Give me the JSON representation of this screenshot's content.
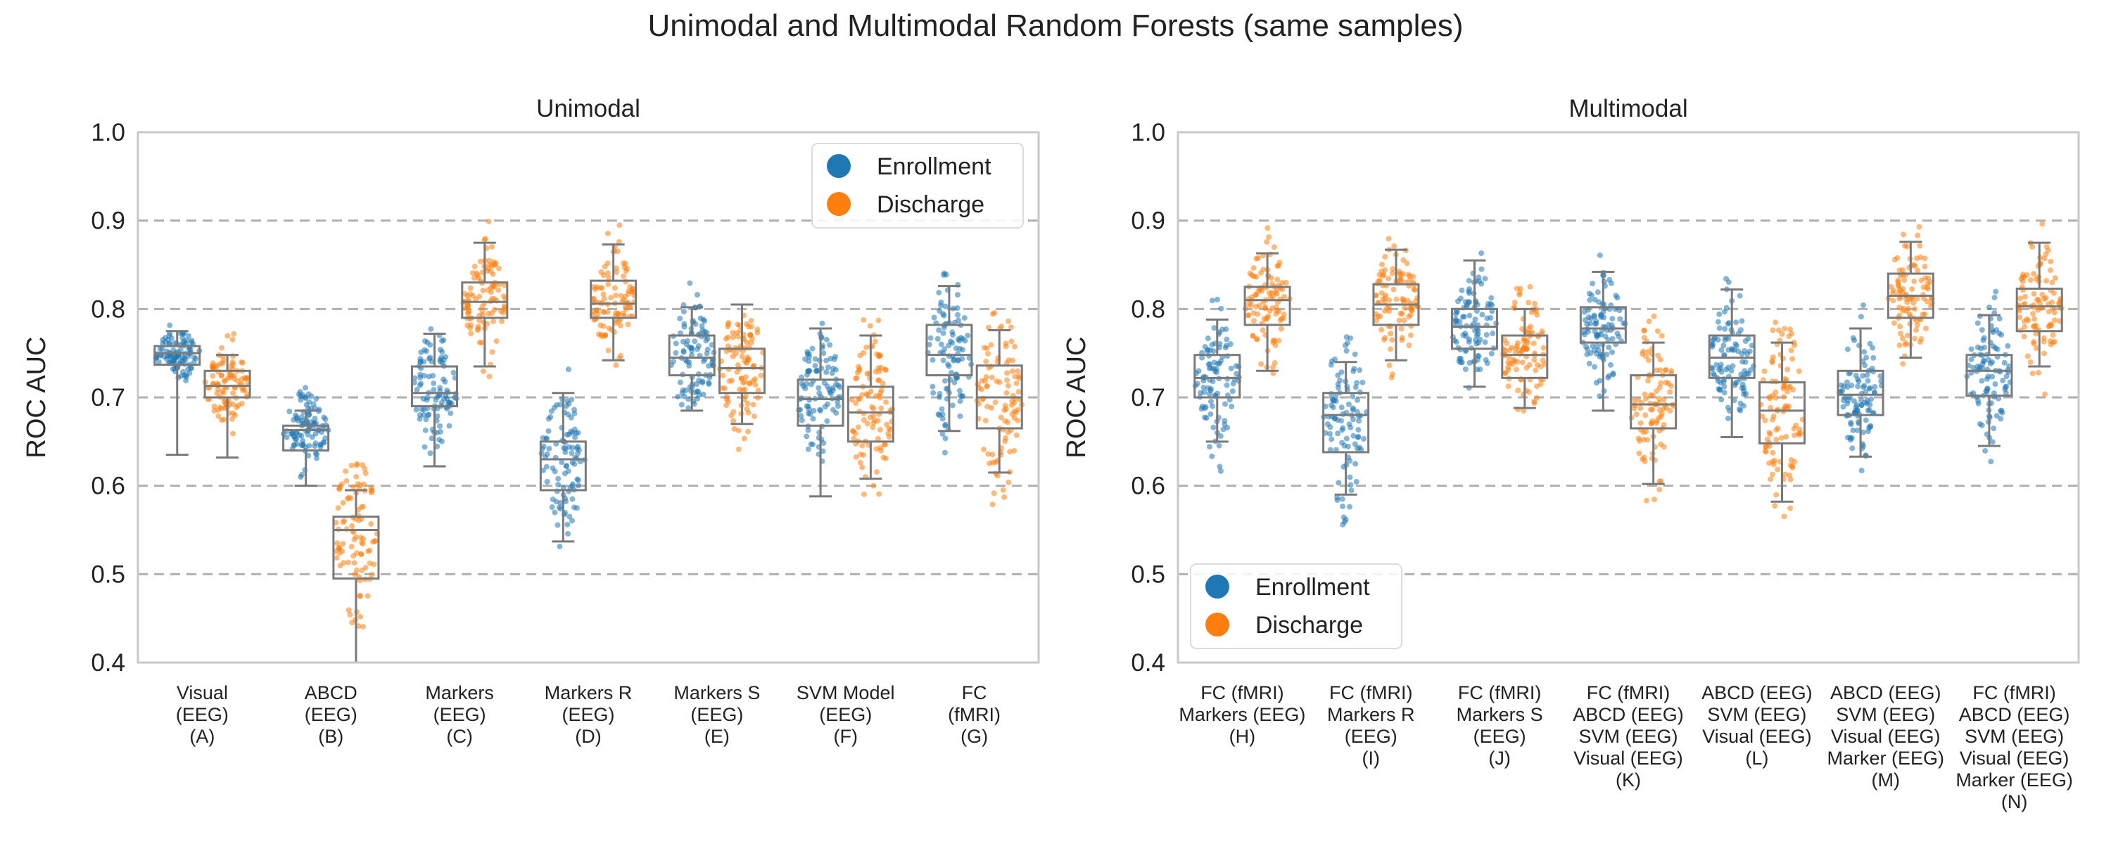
{
  "figure_title": "Unimodal and Multimodal Random Forests (same samples)",
  "colors": {
    "enrollment": "#1f77b4",
    "discharge": "#ff7f0e",
    "box_edge": "#7a7a7a",
    "grid": "#b0b0b0",
    "frame": "#c8c8c8"
  },
  "chart_data": [
    {
      "type": "box",
      "title": "Unimodal",
      "ylabel": "ROC AUC",
      "ylim": [
        0.4,
        1.0
      ],
      "yticks": [
        "0.4",
        "0.5",
        "0.6",
        "0.7",
        "0.8",
        "0.9",
        "1.0"
      ],
      "grid": "horizontal dashed",
      "legend": {
        "position": "top-right",
        "entries": [
          "Enrollment",
          "Discharge"
        ]
      },
      "categories": [
        [
          "Visual",
          "(EEG)",
          "(A)"
        ],
        [
          "ABCD",
          "(EEG)",
          "(B)"
        ],
        [
          "Markers",
          "(EEG)",
          "(C)"
        ],
        [
          "Markers R",
          "(EEG)",
          "(D)"
        ],
        [
          "Markers S",
          "(EEG)",
          "(E)"
        ],
        [
          "SVM Model",
          "(EEG)",
          "(F)"
        ],
        [
          "FC",
          "(fMRI)",
          "(G)"
        ]
      ],
      "series": [
        {
          "name": "Enrollment",
          "color": "#1f77b4",
          "boxes": [
            {
              "q1": 0.737,
              "median": 0.75,
              "q3": 0.758,
              "whislo": 0.635,
              "whishi": 0.775
            },
            {
              "q1": 0.64,
              "median": 0.663,
              "q3": 0.668,
              "whislo": 0.6,
              "whishi": 0.685
            },
            {
              "q1": 0.69,
              "median": 0.705,
              "q3": 0.735,
              "whislo": 0.622,
              "whishi": 0.772
            },
            {
              "q1": 0.595,
              "median": 0.63,
              "q3": 0.65,
              "whislo": 0.537,
              "whishi": 0.705
            },
            {
              "q1": 0.725,
              "median": 0.745,
              "q3": 0.77,
              "whislo": 0.685,
              "whishi": 0.802
            },
            {
              "q1": 0.668,
              "median": 0.698,
              "q3": 0.72,
              "whislo": 0.588,
              "whishi": 0.778
            },
            {
              "q1": 0.725,
              "median": 0.748,
              "q3": 0.782,
              "whislo": 0.662,
              "whishi": 0.826
            }
          ]
        },
        {
          "name": "Discharge",
          "color": "#ff7f0e",
          "boxes": [
            {
              "q1": 0.7,
              "median": 0.713,
              "q3": 0.73,
              "whislo": 0.632,
              "whishi": 0.748
            },
            {
              "q1": 0.495,
              "median": 0.55,
              "q3": 0.565,
              "whislo": 0.4,
              "whishi": 0.595
            },
            {
              "q1": 0.79,
              "median": 0.808,
              "q3": 0.83,
              "whislo": 0.735,
              "whishi": 0.875
            },
            {
              "q1": 0.79,
              "median": 0.806,
              "q3": 0.832,
              "whislo": 0.742,
              "whishi": 0.873
            },
            {
              "q1": 0.705,
              "median": 0.733,
              "q3": 0.755,
              "whislo": 0.67,
              "whishi": 0.805
            },
            {
              "q1": 0.65,
              "median": 0.683,
              "q3": 0.712,
              "whislo": 0.608,
              "whishi": 0.77
            },
            {
              "q1": 0.665,
              "median": 0.7,
              "q3": 0.736,
              "whislo": 0.615,
              "whishi": 0.776
            }
          ]
        }
      ]
    },
    {
      "type": "box",
      "title": "Multimodal",
      "ylabel": "ROC AUC",
      "ylim": [
        0.4,
        1.0
      ],
      "yticks": [
        "0.4",
        "0.5",
        "0.6",
        "0.7",
        "0.8",
        "0.9",
        "1.0"
      ],
      "grid": "horizontal dashed",
      "legend": {
        "position": "lower-left",
        "entries": [
          "Enrollment",
          "Discharge"
        ]
      },
      "categories": [
        [
          "FC (fMRI)",
          "Markers (EEG)",
          "(H)"
        ],
        [
          "FC (fMRI)",
          "Markers R",
          "(EEG)",
          "(I)"
        ],
        [
          "FC (fMRI)",
          "Markers S",
          "(EEG)",
          "(J)"
        ],
        [
          "FC (fMRI)",
          "ABCD (EEG)",
          "SVM (EEG)",
          "Visual (EEG)",
          "(K)"
        ],
        [
          "ABCD (EEG)",
          "SVM (EEG)",
          "Visual (EEG)",
          "(L)"
        ],
        [
          "ABCD (EEG)",
          "SVM (EEG)",
          "Visual (EEG)",
          "Marker (EEG)",
          "(M)"
        ],
        [
          "FC (fMRI)",
          "ABCD (EEG)",
          "SVM (EEG)",
          "Visual (EEG)",
          "Marker (EEG)",
          "(N)"
        ]
      ],
      "series": [
        {
          "name": "Enrollment",
          "color": "#1f77b4",
          "boxes": [
            {
              "q1": 0.7,
              "median": 0.722,
              "q3": 0.748,
              "whislo": 0.65,
              "whishi": 0.788
            },
            {
              "q1": 0.638,
              "median": 0.68,
              "q3": 0.705,
              "whislo": 0.59,
              "whishi": 0.74
            },
            {
              "q1": 0.755,
              "median": 0.78,
              "q3": 0.8,
              "whislo": 0.712,
              "whishi": 0.855
            },
            {
              "q1": 0.762,
              "median": 0.778,
              "q3": 0.802,
              "whislo": 0.685,
              "whishi": 0.842
            },
            {
              "q1": 0.722,
              "median": 0.745,
              "q3": 0.77,
              "whislo": 0.655,
              "whishi": 0.822
            },
            {
              "q1": 0.68,
              "median": 0.703,
              "q3": 0.73,
              "whislo": 0.633,
              "whishi": 0.778
            },
            {
              "q1": 0.702,
              "median": 0.73,
              "q3": 0.748,
              "whislo": 0.645,
              "whishi": 0.793
            }
          ]
        },
        {
          "name": "Discharge",
          "color": "#ff7f0e",
          "boxes": [
            {
              "q1": 0.782,
              "median": 0.81,
              "q3": 0.825,
              "whislo": 0.73,
              "whishi": 0.863
            },
            {
              "q1": 0.782,
              "median": 0.805,
              "q3": 0.828,
              "whislo": 0.742,
              "whishi": 0.867
            },
            {
              "q1": 0.722,
              "median": 0.748,
              "q3": 0.77,
              "whislo": 0.688,
              "whishi": 0.8
            },
            {
              "q1": 0.665,
              "median": 0.692,
              "q3": 0.725,
              "whislo": 0.602,
              "whishi": 0.762
            },
            {
              "q1": 0.648,
              "median": 0.685,
              "q3": 0.717,
              "whislo": 0.582,
              "whishi": 0.762
            },
            {
              "q1": 0.79,
              "median": 0.815,
              "q3": 0.84,
              "whislo": 0.745,
              "whishi": 0.876
            },
            {
              "q1": 0.775,
              "median": 0.803,
              "q3": 0.823,
              "whislo": 0.735,
              "whishi": 0.875
            }
          ]
        }
      ]
    }
  ]
}
